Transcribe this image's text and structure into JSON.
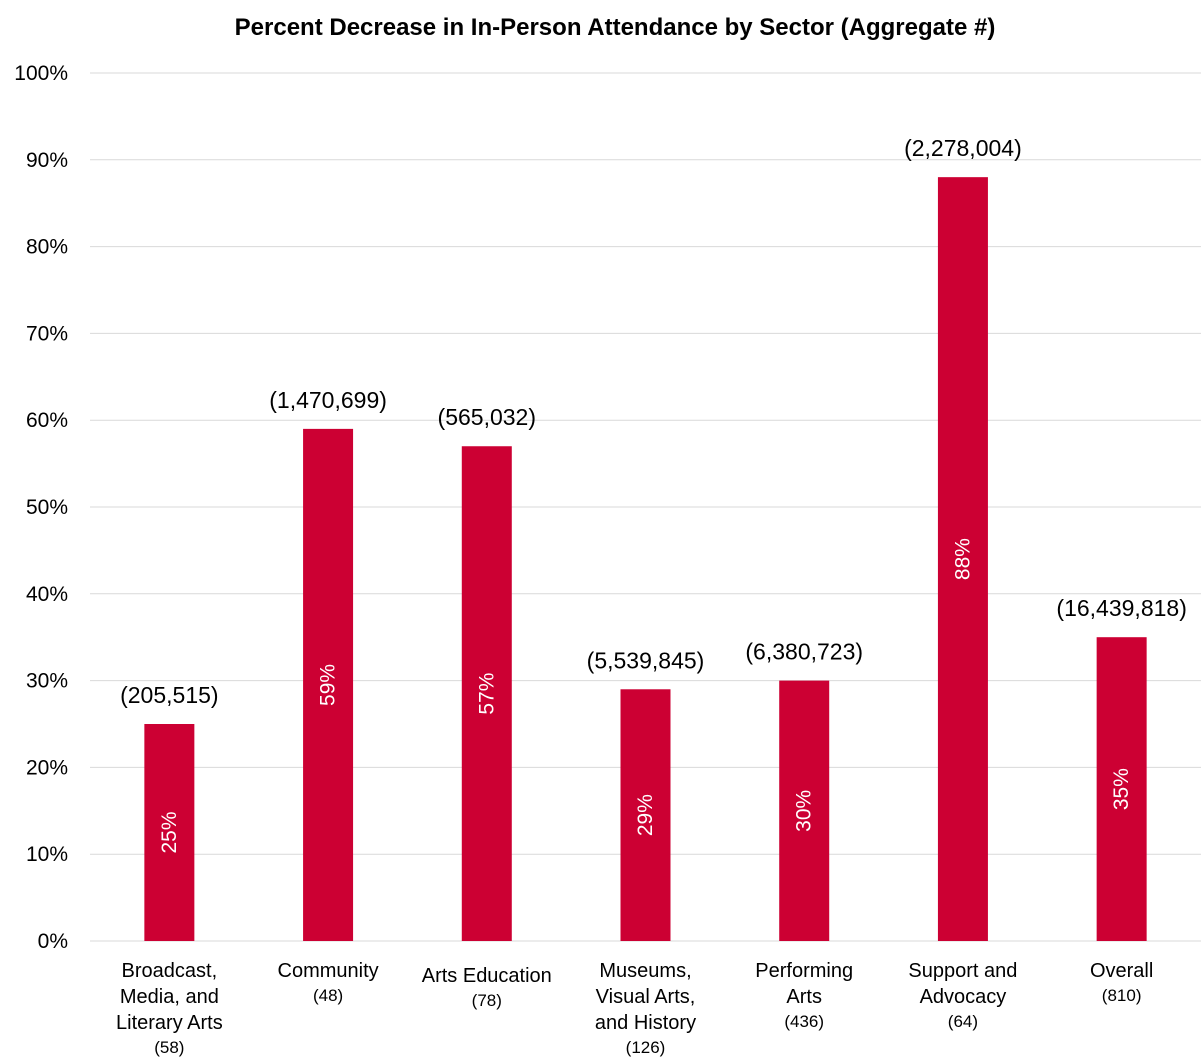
{
  "chart_data": {
    "type": "bar",
    "title": "Percent Decrease in In-Person Attendance by Sector (Aggregate #)",
    "xlabel": "",
    "ylabel": "",
    "ylim": [
      0,
      100
    ],
    "y_ticks": [
      "0%",
      "10%",
      "20%",
      "30%",
      "40%",
      "50%",
      "60%",
      "70%",
      "80%",
      "90%",
      "100%"
    ],
    "grid": true,
    "bar_color": "#cc0033",
    "categories": [
      {
        "lines": [
          "Broadcast,",
          "Media, and",
          "Literary Arts"
        ],
        "count": "(58)"
      },
      {
        "lines": [
          "Community"
        ],
        "count": "(48)"
      },
      {
        "lines": [
          "Arts Education"
        ],
        "count": "(78)"
      },
      {
        "lines": [
          "Museums,",
          "Visual Arts,",
          "and History"
        ],
        "count": "(126)"
      },
      {
        "lines": [
          "Performing",
          "Arts"
        ],
        "count": "(436)"
      },
      {
        "lines": [
          "Support and",
          "Advocacy"
        ],
        "count": "(64)"
      },
      {
        "lines": [
          "Overall"
        ],
        "count": "(810)"
      }
    ],
    "values": [
      25,
      59,
      57,
      29,
      30,
      88,
      35
    ],
    "value_labels": [
      "25%",
      "59%",
      "57%",
      "29%",
      "30%",
      "88%",
      "35%"
    ],
    "aggregate_labels": [
      "(205,515)",
      "(1,470,699)",
      "(565,032)",
      "(5,539,845)",
      "(6,380,723)",
      "(2,278,004)",
      "(16,439,818)"
    ]
  }
}
